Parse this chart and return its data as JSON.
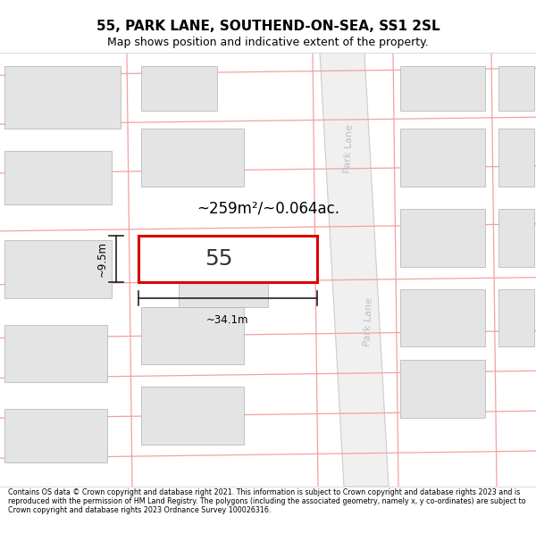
{
  "title": "55, PARK LANE, SOUTHEND-ON-SEA, SS1 2SL",
  "subtitle": "Map shows position and indicative extent of the property.",
  "footer": "Contains OS data © Crown copyright and database right 2021. This information is subject to Crown copyright and database rights 2023 and is reproduced with the permission of HM Land Registry. The polygons (including the associated geometry, namely x, y co-ordinates) are subject to Crown copyright and database rights 2023 Ordnance Survey 100026316.",
  "area_label": "~259m²/~0.064ac.",
  "width_label": "~34.1m",
  "height_label": "~9.5m",
  "property_number": "55",
  "bg_color": "#ffffff",
  "map_bg": "#ffffff",
  "block_fill": "#e4e4e4",
  "block_edge": "#b0b0b0",
  "cadastral_color": "#f4a0a0",
  "road_fill": "#f0f0f0",
  "road_edge": "#cccccc",
  "property_fill": "#ffffff",
  "property_edge": "#dd0000",
  "dim_line_color": "#222222",
  "road_label_color": "#c0c0c0",
  "title_color": "#000000",
  "footer_color": "#000000",
  "title_fontsize": 11,
  "subtitle_fontsize": 9,
  "footer_fontsize": 5.8
}
